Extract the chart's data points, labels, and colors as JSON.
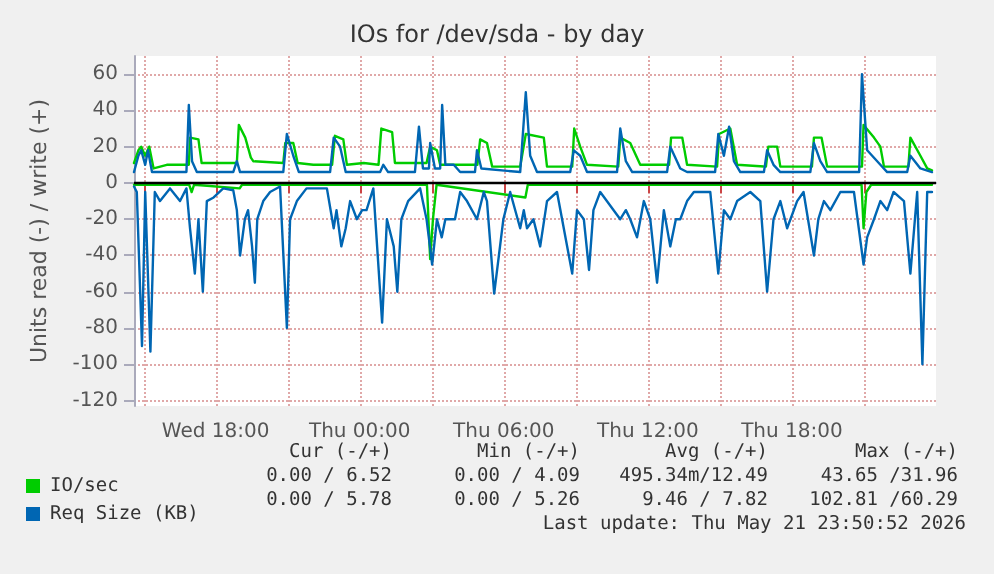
{
  "chart_data": {
    "type": "line",
    "title": "IOs for /dev/sda - by day",
    "ylabel": "Units read (-) / write (+)",
    "xlim": [
      "2026-05-20T14:36",
      "2026-05-22T00:00"
    ],
    "xticks": [
      {
        "value": "2026-05-20T15:00",
        "label": null
      },
      {
        "value": "2026-05-20T18:00",
        "label": "Wed 18:00"
      },
      {
        "value": "2026-05-20T21:00",
        "label": null
      },
      {
        "value": "2026-05-21T00:00",
        "label": "Thu 00:00"
      },
      {
        "value": "2026-05-21T03:00",
        "label": null
      },
      {
        "value": "2026-05-21T06:00",
        "label": "Thu 06:00"
      },
      {
        "value": "2026-05-21T09:00",
        "label": null
      },
      {
        "value": "2026-05-21T12:00",
        "label": "Thu 12:00"
      },
      {
        "value": "2026-05-21T15:00",
        "label": null
      },
      {
        "value": "2026-05-21T18:00",
        "label": "Thu 18:00"
      },
      {
        "value": "2026-05-21T21:00",
        "label": null
      }
    ],
    "ylim": [
      -123,
      70
    ],
    "yticks": [
      -120,
      -100,
      -80,
      -60,
      -40,
      -20,
      0,
      20,
      40,
      60
    ],
    "grid": true,
    "legend": "bottom left",
    "marker": "none",
    "line_style": "solid",
    "ref_lines": [
      {
        "axis": "y",
        "value": 0,
        "color": "#000000"
      }
    ],
    "annotations": [
      "Cur (-/+)",
      "Min (-/+)",
      "Avg (-/+)",
      "Max (-/+)",
      "0.00 / 6.52",
      "0.00 / 4.09",
      "495.34m/12.49",
      "43.65 /31.96",
      "0.00 / 5.78",
      "0.00 / 5.26",
      "9.46 / 7.82",
      "102.81 /60.29",
      "Last update: Thu May 21 23:50:52 2026"
    ],
    "series": [
      {
        "name": "IO/sec",
        "color": "#00cc00",
        "x": [
          "2026-05-20T14:36",
          "2026-05-20T14:47",
          "2026-05-20T14:54",
          "2026-05-20T15:04",
          "2026-05-20T15:14",
          "2026-05-20T15:25",
          "2026-05-20T15:58",
          "2026-05-20T16:53",
          "2026-05-20T16:56",
          "2026-05-20T17:17",
          "2026-05-20T17:25",
          "2026-05-20T18:11",
          "2026-05-20T18:53",
          "2026-05-20T18:58",
          "2026-05-20T19:14",
          "2026-05-20T19:28",
          "2026-05-20T19:34",
          "2026-05-20T20:49",
          "2026-05-20T20:54",
          "2026-05-20T21:14",
          "2026-05-20T21:25",
          "2026-05-20T22:04",
          "2026-05-20T22:51",
          "2026-05-20T22:58",
          "2026-05-20T23:19",
          "2026-05-20T23:28",
          "2026-05-21T00:10",
          "2026-05-21T00:47",
          "2026-05-21T00:54",
          "2026-05-21T01:21",
          "2026-05-21T01:28",
          "2026-05-21T02:47",
          "2026-05-21T02:56",
          "2026-05-21T03:13",
          "2026-05-21T03:21",
          "2026-05-21T04:11",
          "2026-05-21T04:54",
          "2026-05-21T05:01",
          "2026-05-21T05:18",
          "2026-05-21T05:31",
          "2026-05-21T06:41",
          "2026-05-21T06:55",
          "2026-05-21T07:40",
          "2026-05-21T07:48",
          "2026-05-21T08:51",
          "2026-05-21T08:56",
          "2026-05-21T09:11",
          "2026-05-21T09:28",
          "2026-05-21T10:46",
          "2026-05-21T10:51",
          "2026-05-21T11:16",
          "2026-05-21T11:41",
          "2026-05-21T12:53",
          "2026-05-21T12:58",
          "2026-05-21T13:26",
          "2026-05-21T13:38",
          "2026-05-21T14:53",
          "2026-05-21T14:58",
          "2026-05-21T15:26",
          "2026-05-21T15:43",
          "2026-05-21T16:55",
          "2026-05-21T17:01",
          "2026-05-21T17:23",
          "2026-05-21T17:31",
          "2026-05-21T18:50",
          "2026-05-21T18:55",
          "2026-05-21T19:14",
          "2026-05-21T19:28",
          "2026-05-21T20:55",
          "2026-05-21T20:59",
          "2026-05-21T21:25",
          "2026-05-21T21:41",
          "2026-05-21T21:50",
          "2026-05-21T22:51",
          "2026-05-21T22:56",
          "2026-05-21T23:21",
          "2026-05-21T23:38",
          "2026-05-21T23:50"
        ],
        "values": [
          11,
          18,
          20,
          15,
          20,
          8,
          10,
          10,
          25,
          24,
          11,
          11,
          11,
          32,
          25,
          14,
          12,
          11,
          22,
          22,
          11,
          10,
          10,
          26,
          24,
          10,
          11,
          10,
          30,
          28,
          11,
          11,
          20,
          18,
          10,
          10,
          10,
          24,
          22,
          9,
          9,
          27,
          25,
          9,
          9,
          30,
          20,
          10,
          9,
          25,
          22,
          10,
          10,
          25,
          25,
          10,
          9,
          27,
          30,
          10,
          9,
          20,
          20,
          9,
          9,
          25,
          25,
          9,
          9,
          32,
          25,
          20,
          9,
          9,
          25,
          15,
          8,
          7
        ]
      },
      {
        "color": "#00cc00",
        "x": [
          "2026-05-20T14:36",
          "2026-05-20T16:54",
          "2026-05-20T17:00",
          "2026-05-20T17:06",
          "2026-05-20T19:00",
          "2026-05-20T19:06",
          "2026-05-21T02:48",
          "2026-05-21T02:56",
          "2026-05-21T03:03",
          "2026-05-21T03:12",
          "2026-05-21T06:54",
          "2026-05-21T07:00",
          "2026-05-21T20:54",
          "2026-05-21T20:59",
          "2026-05-21T21:06",
          "2026-05-21T21:18",
          "2026-05-21T23:50"
        ],
        "values": [
          -1,
          -1,
          -5,
          -1,
          -3,
          -1,
          -1,
          -42,
          -20,
          -1,
          -8,
          -1,
          -1,
          -25,
          -5,
          -1,
          -1
        ]
      },
      {
        "name": "Req Size (KB)",
        "color": "#0066b3",
        "x": [
          "2026-05-20T14:36",
          "2026-05-20T14:47",
          "2026-05-20T14:54",
          "2026-05-20T15:04",
          "2026-05-20T15:11",
          "2026-05-20T15:21",
          "2026-05-20T16:47",
          "2026-05-20T16:53",
          "2026-05-20T17:01",
          "2026-05-20T17:13",
          "2026-05-20T18:44",
          "2026-05-20T18:53",
          "2026-05-20T19:01",
          "2026-05-20T20:49",
          "2026-05-20T20:58",
          "2026-05-20T21:14",
          "2026-05-20T21:28",
          "2026-05-20T22:46",
          "2026-05-20T22:55",
          "2026-05-20T23:11",
          "2026-05-20T23:25",
          "2026-05-21T00:51",
          "2026-05-21T00:59",
          "2026-05-21T01:11",
          "2026-05-21T02:18",
          "2026-05-21T02:28",
          "2026-05-21T02:38",
          "2026-05-21T02:53",
          "2026-05-21T02:56",
          "2026-05-21T03:08",
          "2026-05-21T03:21",
          "2026-05-21T03:26",
          "2026-05-21T03:34",
          "2026-05-21T03:55",
          "2026-05-21T04:11",
          "2026-05-21T04:48",
          "2026-05-21T04:53",
          "2026-05-21T05:04",
          "2026-05-21T06:41",
          "2026-05-21T06:55",
          "2026-05-21T07:06",
          "2026-05-21T07:23",
          "2026-05-21T08:46",
          "2026-05-21T08:55",
          "2026-05-21T09:11",
          "2026-05-21T09:28",
          "2026-05-21T10:43",
          "2026-05-21T10:51",
          "2026-05-21T11:05",
          "2026-05-21T11:21",
          "2026-05-21T12:48",
          "2026-05-21T12:56",
          "2026-05-21T13:21",
          "2026-05-21T13:38",
          "2026-05-21T14:48",
          "2026-05-21T14:56",
          "2026-05-21T15:10",
          "2026-05-21T15:23",
          "2026-05-21T15:35",
          "2026-05-21T15:51",
          "2026-05-21T16:50",
          "2026-05-21T16:58",
          "2026-05-21T17:14",
          "2026-05-21T17:31",
          "2026-05-21T18:46",
          "2026-05-21T18:55",
          "2026-05-21T19:11",
          "2026-05-21T19:28",
          "2026-05-21T20:48",
          "2026-05-21T20:55",
          "2026-05-21T21:08",
          "2026-05-21T21:41",
          "2026-05-21T21:58",
          "2026-05-21T22:48",
          "2026-05-21T22:56",
          "2026-05-21T23:21",
          "2026-05-21T23:50"
        ],
        "values": [
          6,
          15,
          18,
          10,
          18,
          6,
          6,
          43,
          12,
          6,
          6,
          12,
          6,
          6,
          27,
          15,
          6,
          6,
          25,
          20,
          6,
          6,
          10,
          6,
          6,
          31,
          8,
          8,
          22,
          8,
          8,
          43,
          10,
          10,
          6,
          6,
          18,
          8,
          6,
          50,
          15,
          6,
          6,
          18,
          15,
          6,
          6,
          30,
          12,
          6,
          6,
          20,
          8,
          6,
          6,
          27,
          15,
          31,
          12,
          6,
          6,
          18,
          10,
          6,
          6,
          22,
          12,
          6,
          6,
          60,
          18,
          10,
          6,
          6,
          15,
          8,
          6
        ]
      },
      {
        "color": "#0066b3",
        "x": [
          "2026-05-20T14:36",
          "2026-05-20T14:43",
          "2026-05-20T14:56",
          "2026-05-20T15:04",
          "2026-05-20T15:17",
          "2026-05-20T15:28",
          "2026-05-20T15:41",
          "2026-05-20T16:06",
          "2026-05-20T16:31",
          "2026-05-20T16:47",
          "2026-05-20T16:56",
          "2026-05-20T17:08",
          "2026-05-20T17:17",
          "2026-05-20T17:28",
          "2026-05-20T17:38",
          "2026-05-20T17:55",
          "2026-05-20T18:19",
          "2026-05-20T18:44",
          "2026-05-20T18:53",
          "2026-05-20T19:01",
          "2026-05-20T19:13",
          "2026-05-20T19:21",
          "2026-05-20T19:31",
          "2026-05-20T19:38",
          "2026-05-20T19:44",
          "2026-05-20T19:59",
          "2026-05-20T20:16",
          "2026-05-20T20:41",
          "2026-05-20T20:58",
          "2026-05-20T21:06",
          "2026-05-20T21:23",
          "2026-05-20T21:47",
          "2026-05-20T22:38",
          "2026-05-20T22:55",
          "2026-05-20T23:02",
          "2026-05-20T23:14",
          "2026-05-20T23:25",
          "2026-05-20T23:36",
          "2026-05-20T23:53",
          "2026-05-21T00:06",
          "2026-05-21T00:17",
          "2026-05-21T00:34",
          "2026-05-21T00:56",
          "2026-05-21T01:08",
          "2026-05-21T01:25",
          "2026-05-21T01:34",
          "2026-05-21T01:44",
          "2026-05-21T02:01",
          "2026-05-21T02:31",
          "2026-05-21T02:47",
          "2026-05-21T03:01",
          "2026-05-21T03:13",
          "2026-05-21T03:25",
          "2026-05-21T03:34",
          "2026-05-21T03:58",
          "2026-05-21T04:11",
          "2026-05-21T04:28",
          "2026-05-21T04:53",
          "2026-05-21T05:10",
          "2026-05-21T05:18",
          "2026-05-21T05:36",
          "2026-05-21T05:59",
          "2026-05-21T06:16",
          "2026-05-21T06:41",
          "2026-05-21T06:50",
          "2026-05-21T06:58",
          "2026-05-21T07:14",
          "2026-05-21T07:31",
          "2026-05-21T07:48",
          "2026-05-21T08:13",
          "2026-05-21T08:51",
          "2026-05-21T09:03",
          "2026-05-21T09:20",
          "2026-05-21T09:33",
          "2026-05-21T09:44",
          "2026-05-21T10:01",
          "2026-05-21T10:51",
          "2026-05-21T11:05",
          "2026-05-21T11:16",
          "2026-05-21T11:33",
          "2026-05-21T11:50",
          "2026-05-21T12:06",
          "2026-05-21T12:23",
          "2026-05-21T12:40",
          "2026-05-21T12:56",
          "2026-05-21T13:10",
          "2026-05-21T13:21",
          "2026-05-21T13:38",
          "2026-05-21T13:55",
          "2026-05-21T14:36",
          "2026-05-21T14:56",
          "2026-05-21T15:10",
          "2026-05-21T15:26",
          "2026-05-21T15:43",
          "2026-05-21T16:16",
          "2026-05-21T16:41",
          "2026-05-21T16:58",
          "2026-05-21T17:14",
          "2026-05-21T17:31",
          "2026-05-21T17:48",
          "2026-05-21T18:13",
          "2026-05-21T18:29",
          "2026-05-21T18:55",
          "2026-05-21T19:06",
          "2026-05-21T19:20",
          "2026-05-21T19:36",
          "2026-05-21T20:01",
          "2026-05-21T20:35",
          "2026-05-21T20:59",
          "2026-05-21T21:08",
          "2026-05-21T21:25",
          "2026-05-21T21:41",
          "2026-05-21T21:58",
          "2026-05-21T22:14",
          "2026-05-21T22:40",
          "2026-05-21T22:56",
          "2026-05-21T23:13",
          "2026-05-21T23:26",
          "2026-05-21T23:38",
          "2026-05-21T23:50"
        ],
        "values": [
          -2,
          -5,
          -90,
          -5,
          -93,
          -5,
          -10,
          -3,
          -10,
          -3,
          -25,
          -50,
          -20,
          -60,
          -10,
          -8,
          -3,
          -4,
          -15,
          -40,
          -20,
          -15,
          -35,
          -55,
          -20,
          -10,
          -5,
          -2,
          -80,
          -20,
          -10,
          -3,
          -3,
          -25,
          -15,
          -35,
          -25,
          -10,
          -20,
          -15,
          -15,
          -3,
          -77,
          -20,
          -35,
          -60,
          -20,
          -10,
          -3,
          -20,
          -45,
          -20,
          -30,
          -20,
          -20,
          -5,
          -10,
          -20,
          -5,
          -10,
          -61,
          -20,
          -5,
          -25,
          -15,
          -25,
          -20,
          -35,
          -10,
          -5,
          -50,
          -15,
          -20,
          -48,
          -15,
          -5,
          -20,
          -15,
          -20,
          -30,
          -10,
          -20,
          -55,
          -15,
          -35,
          -20,
          -20,
          -10,
          -5,
          -5,
          -50,
          -15,
          -20,
          -10,
          -5,
          -10,
          -60,
          -20,
          -10,
          -25,
          -10,
          -5,
          -40,
          -20,
          -10,
          -15,
          -5,
          -5,
          -45,
          -30,
          -20,
          -10,
          -15,
          -5,
          -10,
          -50,
          -5,
          -100,
          -5,
          -5
        ]
      }
    ]
  }
}
